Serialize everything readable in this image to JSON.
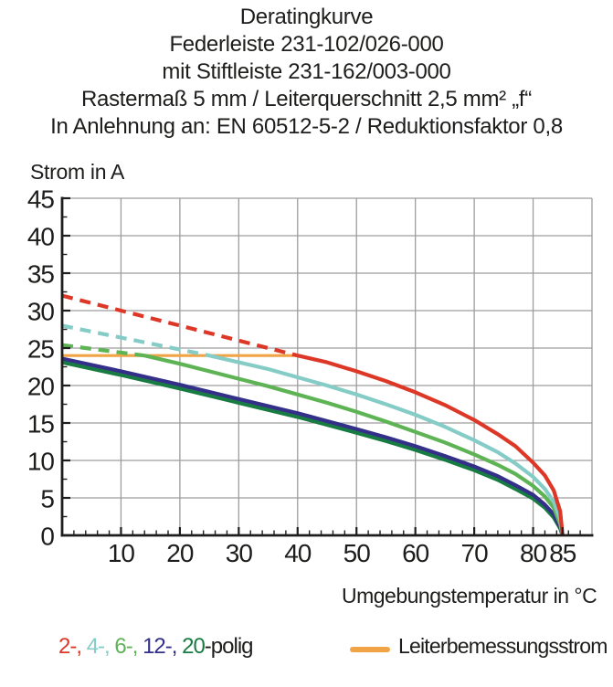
{
  "title": {
    "lines": [
      "Deratingkurve",
      "Federleiste 231-102/026-000",
      "mit Stiftleiste 231-162/003-000",
      "Rastermaß 5 mm / Leiterquerschnitt 2,5 mm² „f“",
      "In Anlehnung an: EN 60512-5-2 / Reduktionsfaktor 0,8"
    ]
  },
  "chart_data": {
    "type": "line",
    "title": "Deratingkurve",
    "xlabel": "Umgebungstemperatur in °C",
    "ylabel": "Strom in A",
    "xlim": [
      0,
      90
    ],
    "ylim": [
      0,
      45
    ],
    "x_ticks": [
      10,
      20,
      30,
      40,
      50,
      60,
      70,
      80,
      85
    ],
    "x_gridlines": [
      10,
      20,
      30,
      40,
      50,
      60,
      70,
      80
    ],
    "y_ticks": [
      45,
      40,
      35,
      30,
      25,
      20,
      15,
      10,
      5,
      0
    ],
    "y_gridlines": [
      5,
      10,
      15,
      20,
      25,
      30,
      35,
      40,
      45
    ],
    "x_minor_step": 2,
    "y_minor_step": 2.5,
    "grid": true,
    "grid_color": "#9d9d9d",
    "axis_color": "#1d1d1b",
    "series": [
      {
        "name": "Leiterbemessungsstrom",
        "color": "#f0a445",
        "style": "solid",
        "width": 3.2,
        "points": [
          [
            0,
            24
          ],
          [
            40,
            24
          ]
        ]
      },
      {
        "name": "2-polig-ueber-bemessungsstrom",
        "color": "#dd3827",
        "style": "dashed",
        "width": 4.2,
        "points": [
          [
            0,
            32
          ],
          [
            40,
            24
          ]
        ]
      },
      {
        "name": "4-polig-ueber-bemessungsstrom",
        "color": "#85ccc7",
        "style": "dashed",
        "width": 4.2,
        "points": [
          [
            0,
            28
          ],
          [
            25,
            24
          ]
        ]
      },
      {
        "name": "6-polig-ueber-bemessungsstrom",
        "color": "#5eb455",
        "style": "dashed",
        "width": 4.2,
        "points": [
          [
            0,
            25.4
          ],
          [
            14,
            24
          ]
        ]
      },
      {
        "name": "20-polig",
        "color": "#187c42",
        "style": "solid",
        "width": 4.2,
        "points": [
          [
            0,
            23.1
          ],
          [
            10,
            21.4
          ],
          [
            20,
            19.6
          ],
          [
            30,
            17.7
          ],
          [
            40,
            15.8
          ],
          [
            50,
            13.7
          ],
          [
            55,
            12.6
          ],
          [
            60,
            11.4
          ],
          [
            65,
            10.1
          ],
          [
            70,
            8.7
          ],
          [
            74,
            7.4
          ],
          [
            77,
            6.2
          ],
          [
            80,
            4.9
          ],
          [
            82,
            3.7
          ],
          [
            83.5,
            2.4
          ],
          [
            84.6,
            0.9
          ],
          [
            85,
            0
          ]
        ]
      },
      {
        "name": "12-polig",
        "color": "#34308a",
        "style": "solid",
        "width": 4.2,
        "points": [
          [
            0,
            23.6
          ],
          [
            10,
            21.9
          ],
          [
            20,
            20.1
          ],
          [
            30,
            18.2
          ],
          [
            40,
            16.3
          ],
          [
            50,
            14.2
          ],
          [
            55,
            13.1
          ],
          [
            60,
            11.9
          ],
          [
            65,
            10.6
          ],
          [
            70,
            9.2
          ],
          [
            74,
            7.9
          ],
          [
            77,
            6.7
          ],
          [
            80,
            5.4
          ],
          [
            82,
            4.1
          ],
          [
            83.5,
            2.8
          ],
          [
            84.6,
            1.1
          ],
          [
            85,
            0
          ]
        ]
      },
      {
        "name": "6-polig",
        "color": "#5eb455",
        "style": "solid",
        "width": 4.2,
        "points": [
          [
            14,
            24
          ],
          [
            20,
            22.9
          ],
          [
            25,
            21.9
          ],
          [
            30,
            20.9
          ],
          [
            35,
            19.9
          ],
          [
            40,
            18.8
          ],
          [
            45,
            17.7
          ],
          [
            50,
            16.5
          ],
          [
            55,
            15.2
          ],
          [
            60,
            13.8
          ],
          [
            65,
            12.4
          ],
          [
            70,
            10.8
          ],
          [
            74,
            9.4
          ],
          [
            77,
            8.2
          ],
          [
            80,
            6.6
          ],
          [
            82,
            5.2
          ],
          [
            83.5,
            3.7
          ],
          [
            84.6,
            1.5
          ],
          [
            85,
            0
          ]
        ]
      },
      {
        "name": "4-polig",
        "color": "#85ccc7",
        "style": "solid",
        "width": 4.2,
        "points": [
          [
            25,
            24
          ],
          [
            30,
            23.1
          ],
          [
            35,
            22.2
          ],
          [
            40,
            21.1
          ],
          [
            45,
            20
          ],
          [
            50,
            18.8
          ],
          [
            55,
            17.5
          ],
          [
            60,
            16.1
          ],
          [
            65,
            14.5
          ],
          [
            70,
            12.7
          ],
          [
            74,
            11.1
          ],
          [
            77,
            9.6
          ],
          [
            80,
            7.8
          ],
          [
            82,
            6.2
          ],
          [
            83.5,
            4.5
          ],
          [
            84.6,
            2.1
          ],
          [
            85,
            0
          ]
        ]
      },
      {
        "name": "2-polig",
        "color": "#dd3827",
        "style": "solid",
        "width": 4.2,
        "points": [
          [
            40,
            24
          ],
          [
            45,
            23.1
          ],
          [
            50,
            21.9
          ],
          [
            55,
            20.6
          ],
          [
            60,
            19.1
          ],
          [
            65,
            17.4
          ],
          [
            70,
            15.4
          ],
          [
            74,
            13.5
          ],
          [
            77,
            11.9
          ],
          [
            80,
            9.7
          ],
          [
            82,
            8
          ],
          [
            83.5,
            6
          ],
          [
            84.6,
            3.2
          ],
          [
            85,
            0
          ]
        ]
      }
    ]
  },
  "legend": {
    "pole_segments": [
      {
        "name": "2-polig",
        "text": "2-, ",
        "color": "#dd3827"
      },
      {
        "name": "4-polig",
        "text": "4-, ",
        "color": "#85ccc7"
      },
      {
        "name": "6-polig",
        "text": "6-, ",
        "color": "#5eb455"
      },
      {
        "name": "12-polig",
        "text": "12-, ",
        "color": "#34308a"
      },
      {
        "name": "20-polig",
        "text": "20",
        "color": "#187c42"
      },
      {
        "name": "polig-suffix",
        "text": "-polig",
        "color": "#1d1d1b"
      }
    ],
    "rated_current_label": "Leiterbemessungsstrom",
    "rated_current_color": "#f0a445"
  }
}
